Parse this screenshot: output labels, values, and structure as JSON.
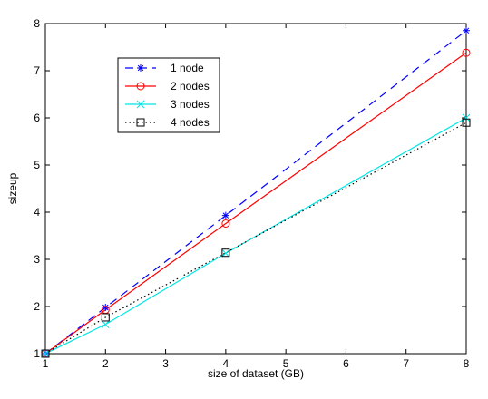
{
  "chart_data": {
    "type": "line",
    "title": "",
    "xlabel": "size of dataset (GB)",
    "ylabel": "sizeup",
    "xlim": [
      1,
      8
    ],
    "ylim": [
      1,
      8
    ],
    "xticks": [
      1,
      2,
      3,
      4,
      5,
      6,
      7,
      8
    ],
    "yticks": [
      1,
      2,
      3,
      4,
      5,
      6,
      7,
      8
    ],
    "grid": false,
    "legend": {
      "placement": "top-left"
    },
    "x": [
      1,
      2,
      4,
      8
    ],
    "series": [
      {
        "name": "1 node",
        "values": [
          1,
          1.98,
          3.93,
          7.85
        ],
        "color": "#0000ff",
        "line": "dashed",
        "marker": "star"
      },
      {
        "name": "2 nodes",
        "values": [
          1,
          1.93,
          3.76,
          7.38
        ],
        "color": "#ff0000",
        "line": "solid",
        "marker": "circle"
      },
      {
        "name": "3 nodes",
        "values": [
          1,
          1.62,
          3.13,
          6.0
        ],
        "color": "#00e5e5",
        "line": "solid",
        "marker": "x"
      },
      {
        "name": "4 nodes",
        "values": [
          1,
          1.77,
          3.14,
          5.9
        ],
        "color": "#000000",
        "line": "dotted",
        "marker": "square"
      }
    ]
  }
}
